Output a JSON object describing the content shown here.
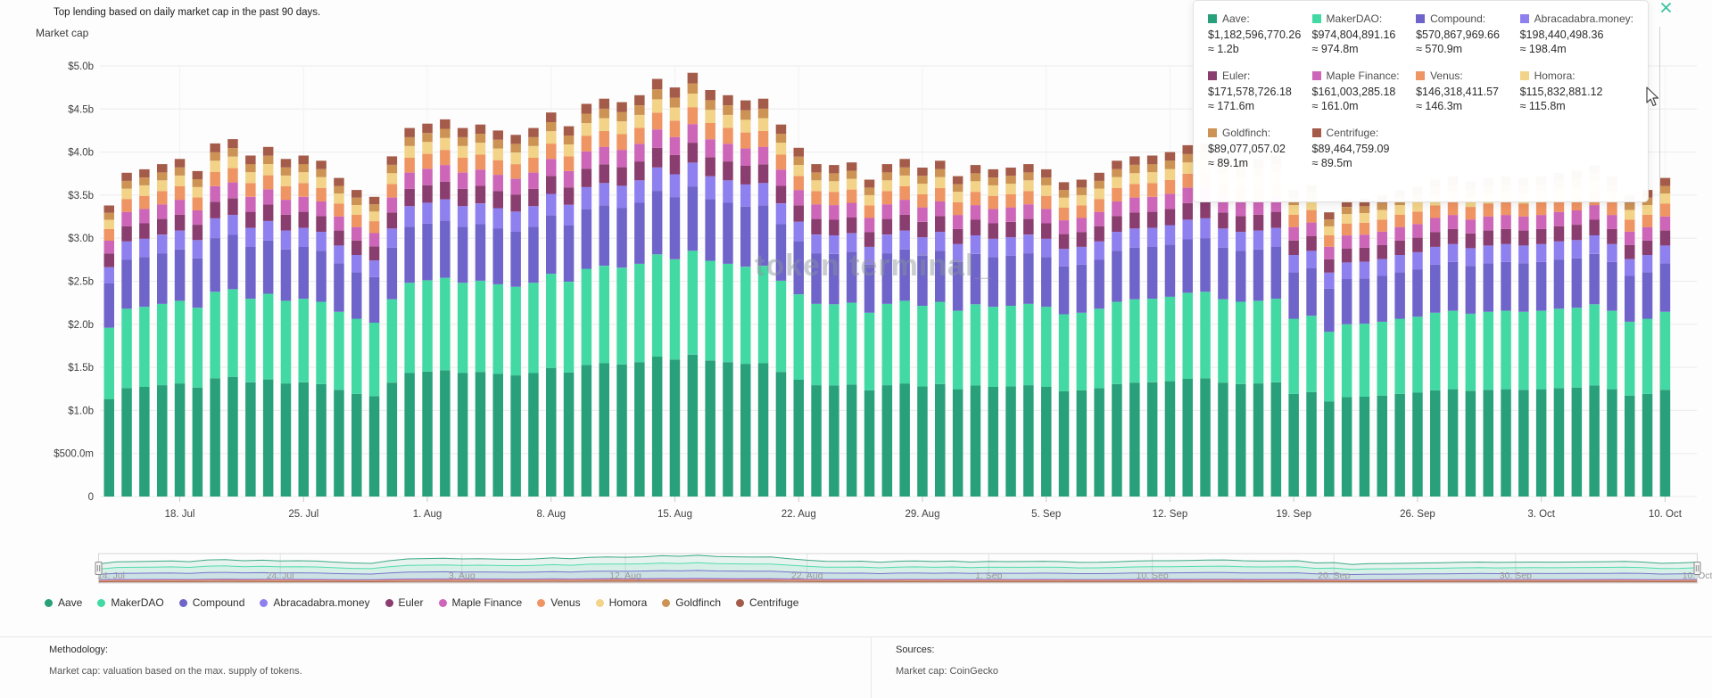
{
  "header": {
    "subtitle": "Top lending based on daily market cap in the past 90 days.",
    "axis_title": "Market cap"
  },
  "watermark": "token terminal_",
  "tooltip": {
    "items": [
      {
        "name": "Aave:",
        "color": "#28a079",
        "value": "$1,182,596,770.26",
        "approx": "≈ 1.2b"
      },
      {
        "name": "MakerDAO:",
        "color": "#43d9a5",
        "value": "$974,804,891.16",
        "approx": "≈ 974.8m"
      },
      {
        "name": "Compound:",
        "color": "#6f64ca",
        "value": "$570,867,969.66",
        "approx": "≈ 570.9m"
      },
      {
        "name": "Abracadabra.money:",
        "color": "#8f80f0",
        "value": "$198,440,498.36",
        "approx": "≈ 198.4m"
      },
      {
        "name": "Euler:",
        "color": "#8a3d6f",
        "value": "$171,578,726.18",
        "approx": "≈ 171.6m"
      },
      {
        "name": "Maple Finance:",
        "color": "#cd66b8",
        "value": "$161,003,285.18",
        "approx": "≈ 161.0m"
      },
      {
        "name": "Venus:",
        "color": "#ef9463",
        "value": "$146,318,411.57",
        "approx": "≈ 146.3m"
      },
      {
        "name": "Homora:",
        "color": "#f2d388",
        "value": "$115,832,881.12",
        "approx": "≈ 115.8m"
      },
      {
        "name": "Goldfinch:",
        "color": "#cc9355",
        "value": "$89,077,057.02",
        "approx": "≈ 89.1m"
      },
      {
        "name": "Centrifuge:",
        "color": "#a45b4a",
        "value": "$89,464,759.09",
        "approx": "≈ 89.5m"
      }
    ]
  },
  "chart_data": {
    "type": "bar",
    "stacked": true,
    "title": "Top lending based on daily market cap in the past 90 days.",
    "ylabel": "Market cap",
    "unit": "USD billions",
    "ylim": [
      0,
      5
    ],
    "grid": true,
    "num_bars": 89,
    "y_tick_labels": [
      "$5.0b",
      "$4.5b",
      "$4.0b",
      "$3.5b",
      "$3.0b",
      "$2.5b",
      "$2.0b",
      "$1.5b",
      "$1.0b",
      "$500.0m",
      "0"
    ],
    "y_tick_values": [
      5,
      4.5,
      4,
      3.5,
      3,
      2.5,
      2,
      1.5,
      1,
      0.5,
      0
    ],
    "x_tick_labels": [
      "18. Jul",
      "25. Jul",
      "1. Aug",
      "8. Aug",
      "15. Aug",
      "22. Aug",
      "29. Aug",
      "5. Sep",
      "12. Sep",
      "19. Sep",
      "26. Sep",
      "3. Oct",
      "10. Oct"
    ],
    "x_tick_day_indices": [
      4,
      11,
      18,
      25,
      32,
      39,
      46,
      53,
      60,
      67,
      74,
      81,
      88
    ],
    "totals_billions": [
      3.38,
      3.76,
      3.8,
      3.86,
      3.92,
      3.78,
      4.1,
      4.15,
      3.96,
      4.06,
      3.92,
      3.96,
      3.9,
      3.7,
      3.56,
      3.48,
      3.95,
      4.28,
      4.33,
      4.38,
      4.28,
      4.32,
      4.25,
      4.2,
      4.28,
      4.46,
      4.3,
      4.56,
      4.62,
      4.58,
      4.66,
      4.85,
      4.75,
      4.92,
      4.72,
      4.66,
      4.6,
      4.62,
      4.32,
      4.05,
      3.86,
      3.85,
      3.88,
      3.68,
      3.86,
      3.92,
      3.82,
      3.9,
      3.72,
      3.85,
      3.8,
      3.82,
      3.86,
      3.8,
      3.65,
      3.68,
      3.76,
      3.9,
      3.95,
      3.96,
      4.0,
      4.08,
      4.1,
      3.95,
      3.9,
      3.92,
      3.96,
      3.56,
      3.62,
      3.3,
      3.45,
      3.46,
      3.5,
      3.56,
      3.6,
      3.68,
      3.72,
      3.66,
      3.7,
      3.72,
      3.7,
      3.72,
      3.76,
      3.78,
      3.85,
      3.72,
      3.5,
      3.56,
      3.7
    ],
    "series": [
      {
        "name": "Aave",
        "color": "#28a079",
        "fraction": 0.335
      },
      {
        "name": "MakerDAO",
        "color": "#43d9a5",
        "fraction": 0.245
      },
      {
        "name": "Compound",
        "color": "#6f64ca",
        "fraction": 0.152
      },
      {
        "name": "Abracadabra.money",
        "color": "#8f80f0",
        "fraction": 0.056
      },
      {
        "name": "Euler",
        "color": "#8a3d6f",
        "fraction": 0.047
      },
      {
        "name": "Maple Finance",
        "color": "#cd66b8",
        "fraction": 0.044
      },
      {
        "name": "Venus",
        "color": "#ef9463",
        "fraction": 0.04
      },
      {
        "name": "Homora",
        "color": "#f2d388",
        "fraction": 0.032
      },
      {
        "name": "Goldfinch",
        "color": "#cc9355",
        "fraction": 0.024
      },
      {
        "name": "Centrifuge",
        "color": "#a45b4a",
        "fraction": 0.025
      }
    ],
    "hovered_bar_values": {
      "note": "values shown in tooltip for the 10. Oct bar",
      "Aave": 1182596770.26,
      "MakerDAO": 974804891.16,
      "Compound": 570867969.66,
      "Abracadabra.money": 198440498.36,
      "Euler": 171578726.18,
      "Maple Finance": 161003285.18,
      "Venus": 146318411.57,
      "Homora": 115832881.12,
      "Goldfinch": 89077057.02,
      "Centrifuge": 89464759.09
    }
  },
  "navigator": {
    "labels": [
      "14. Jul",
      "24. Jul",
      "3. Aug",
      "12. Aug",
      "22. Aug",
      "1. Sep",
      "10. Sep",
      "20. Sep",
      "30. Sep",
      "10. Oct"
    ],
    "day_indices": [
      0,
      10,
      20,
      29,
      39,
      49,
      58,
      68,
      78,
      88
    ],
    "max_billions": 1.75
  },
  "legend": {
    "labels": [
      "Aave",
      "MakerDAO",
      "Compound",
      "Abracadabra.money",
      "Euler",
      "Maple Finance",
      "Venus",
      "Homora",
      "Goldfinch",
      "Centrifuge"
    ]
  },
  "footer": {
    "methodology_title": "Methodology:",
    "methodology_text": "Market cap: valuation based on the max. supply of tokens.",
    "sources_title": "Sources:",
    "sources_text": "Market cap: CoinGecko"
  },
  "colors": {
    "close_icon": "#35c39e",
    "gridline": "#ececec",
    "axis_text": "#3f3f3f",
    "nav_label": "#9a9a9a"
  }
}
